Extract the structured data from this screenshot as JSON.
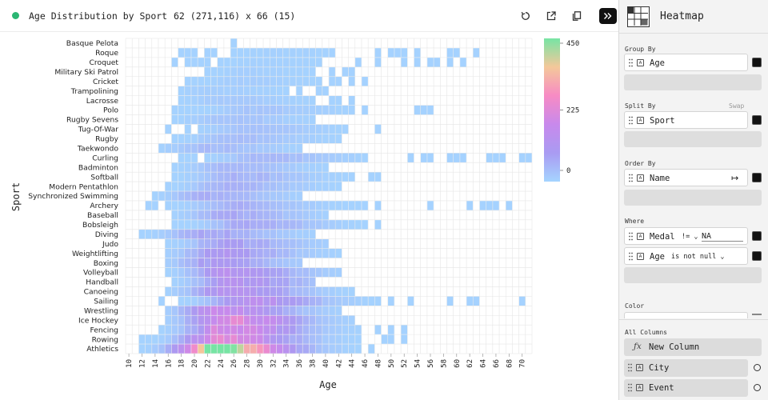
{
  "toolbar": {
    "title": "Age Distribution by Sport",
    "dimensions": "62 (271,116) x 66 (15)",
    "reset_icon": "reset-icon",
    "export_icon": "export-icon",
    "copy_icon": "copy-icon",
    "collapse_icon": "collapse-panel-icon"
  },
  "panel": {
    "plugin_name": "Heatmap",
    "plugin_icon": "heatmap-plugin-icon",
    "group_by_label": "Group By",
    "group_by_column": "Age",
    "split_by_label": "Split By",
    "swap_label": "Swap",
    "split_by_column": "Sport",
    "order_by_label": "Order By",
    "order_by_column": "Name",
    "order_direction_icon": "sort-ascending-icon",
    "where_label": "Where",
    "filters": [
      {
        "column": "Medal",
        "operator": "!= ⌄",
        "value": "NA"
      },
      {
        "column": "Age",
        "operator": "is not null  ⌄",
        "value": ""
      }
    ],
    "color_label": "Color",
    "all_columns_label": "All Columns",
    "new_column_label": "New Column",
    "columns": [
      "City",
      "Event"
    ],
    "type_badge": "A"
  },
  "chart_data": {
    "type": "heatmap",
    "xlabel": "Age",
    "ylabel": "Sport",
    "x_range": [
      10,
      71
    ],
    "x_ticks": [
      10,
      12,
      14,
      16,
      18,
      20,
      22,
      24,
      26,
      28,
      30,
      32,
      34,
      36,
      38,
      40,
      42,
      44,
      46,
      48,
      50,
      52,
      54,
      56,
      58,
      60,
      62,
      64,
      66,
      68,
      70
    ],
    "categories_top_to_bottom": [
      "Basque Pelota",
      "Roque",
      "Croquet",
      "Military Ski Patrol",
      "Cricket",
      "Trampolining",
      "Lacrosse",
      "Polo",
      "Rugby Sevens",
      "Tug-Of-War",
      "Rugby",
      "Taekwondo",
      "Curling",
      "Badminton",
      "Softball",
      "Modern Pentathlon",
      "Synchronized Swimming",
      "Archery",
      "Baseball",
      "Bobsleigh",
      "Diving",
      "Judo",
      "Weightlifting",
      "Boxing",
      "Volleyball",
      "Handball",
      "Canoeing",
      "Sailing",
      "Wrestling",
      "Ice Hockey",
      "Fencing",
      "Rowing",
      "Athletics"
    ],
    "rows": [
      {
        "x_min": 26,
        "x_max": 26,
        "peak_age": 26,
        "peak": 2
      },
      {
        "x_min": 18,
        "x_max": 63,
        "peak_age": 32,
        "peak": 3
      },
      {
        "x_min": 17,
        "x_max": 61,
        "peak_age": 30,
        "peak": 3
      },
      {
        "x_min": 22,
        "x_max": 44,
        "peak_age": 28,
        "peak": 4
      },
      {
        "x_min": 19,
        "x_max": 46,
        "peak_age": 27,
        "peak": 6
      },
      {
        "x_min": 18,
        "x_max": 40,
        "peak_age": 23,
        "peak": 5
      },
      {
        "x_min": 18,
        "x_max": 44,
        "peak_age": 25,
        "peak": 10
      },
      {
        "x_min": 17,
        "x_max": 56,
        "peak_age": 29,
        "peak": 14
      },
      {
        "x_min": 17,
        "x_max": 38,
        "peak_age": 25,
        "peak": 17
      },
      {
        "x_min": 16,
        "x_max": 48,
        "peak_age": 28,
        "peak": 18
      },
      {
        "x_min": 17,
        "x_max": 42,
        "peak_age": 26,
        "peak": 22
      },
      {
        "x_min": 15,
        "x_max": 36,
        "peak_age": 22,
        "peak": 25
      },
      {
        "x_min": 18,
        "x_max": 71,
        "peak_age": 30,
        "peak": 30
      },
      {
        "x_min": 17,
        "x_max": 40,
        "peak_age": 25,
        "peak": 28
      },
      {
        "x_min": 17,
        "x_max": 48,
        "peak_age": 26,
        "peak": 38
      },
      {
        "x_min": 16,
        "x_max": 42,
        "peak_age": 25,
        "peak": 35
      },
      {
        "x_min": 14,
        "x_max": 36,
        "peak_age": 22,
        "peak": 40
      },
      {
        "x_min": 13,
        "x_max": 68,
        "peak_age": 26,
        "peak": 40
      },
      {
        "x_min": 17,
        "x_max": 40,
        "peak_age": 25,
        "peak": 48
      },
      {
        "x_min": 17,
        "x_max": 48,
        "peak_age": 28,
        "peak": 50
      },
      {
        "x_min": 12,
        "x_max": 38,
        "peak_age": 22,
        "peak": 55
      },
      {
        "x_min": 16,
        "x_max": 40,
        "peak_age": 25,
        "peak": 62
      },
      {
        "x_min": 16,
        "x_max": 42,
        "peak_age": 24,
        "peak": 80
      },
      {
        "x_min": 16,
        "x_max": 36,
        "peak_age": 23,
        "peak": 70
      },
      {
        "x_min": 16,
        "x_max": 42,
        "peak_age": 25,
        "peak": 105
      },
      {
        "x_min": 17,
        "x_max": 38,
        "peak_age": 26,
        "peak": 100
      },
      {
        "x_min": 16,
        "x_max": 44,
        "peak_age": 25,
        "peak": 115
      },
      {
        "x_min": 15,
        "x_max": 70,
        "peak_age": 28,
        "peak": 120
      },
      {
        "x_min": 16,
        "x_max": 42,
        "peak_age": 24,
        "peak": 150
      },
      {
        "x_min": 16,
        "x_max": 44,
        "peak_age": 25,
        "peak": 210
      },
      {
        "x_min": 15,
        "x_max": 52,
        "peak_age": 25,
        "peak": 195
      },
      {
        "x_min": 12,
        "x_max": 52,
        "peak_age": 24,
        "peak": 215
      },
      {
        "x_min": 12,
        "x_max": 47,
        "peak_age": 23,
        "peak": 430
      }
    ],
    "color_scale": {
      "min": 0,
      "max": 450,
      "ticks": [
        0,
        225,
        450
      ],
      "colors": [
        "#a5d4ff",
        "#a99bf2",
        "#c889ec",
        "#f78bc4",
        "#f4c89a",
        "#77e4a4"
      ]
    },
    "grid": true
  }
}
